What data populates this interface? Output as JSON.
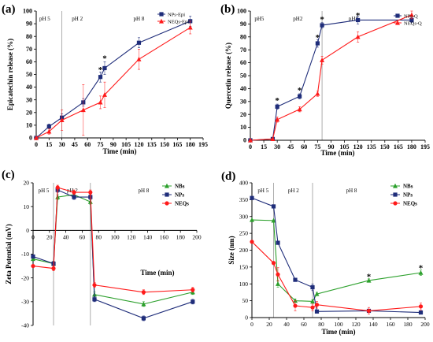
{
  "chart_data": [
    {
      "panel": "(a)",
      "type": "line",
      "xlabel": "Time (min)",
      "ylabel": "Epicatechin  release (%)",
      "xlim": [
        0,
        195
      ],
      "ylim": [
        0,
        100
      ],
      "xticks": [
        0,
        15,
        30,
        45,
        60,
        75,
        90,
        105,
        120,
        135,
        150,
        165,
        180,
        195
      ],
      "yticks": [
        0,
        10,
        20,
        30,
        40,
        50,
        60,
        70,
        80,
        90,
        100
      ],
      "phases": [
        {
          "label": "pH 5",
          "x": 10
        },
        {
          "label": "pH 2",
          "x": 48
        },
        {
          "label": "pH 8",
          "x": 120
        }
      ],
      "dividers": [
        30
      ],
      "legend_position": "top-right",
      "series": [
        {
          "name": "NPs-Epi",
          "color": "#1f2d7a",
          "marker": "square",
          "x": [
            0,
            15,
            30,
            55,
            75,
            80,
            120,
            180
          ],
          "y": [
            0,
            9,
            16,
            28,
            48,
            55,
            75,
            92
          ],
          "err": [
            0,
            2,
            3,
            3,
            4,
            5,
            4,
            4
          ]
        },
        {
          "name": "NEQs-Epi",
          "color": "#ff1a1a",
          "marker": "triangle",
          "x": [
            0,
            15,
            30,
            55,
            75,
            80,
            120,
            180
          ],
          "y": [
            0,
            5,
            14,
            22,
            28,
            34,
            62,
            87
          ],
          "err": [
            0,
            2,
            8,
            20,
            5,
            10,
            8,
            5
          ]
        }
      ],
      "annotations": [
        {
          "text": "*",
          "x": 75,
          "y": 54
        },
        {
          "text": "*",
          "x": 80,
          "y": 63
        }
      ]
    },
    {
      "panel": "(b)",
      "type": "line",
      "xlabel": "Time (min)",
      "ylabel": "Quercetin release (%)",
      "xlim": [
        0,
        195
      ],
      "ylim": [
        0,
        100
      ],
      "xticks": [
        0,
        15,
        30,
        45,
        60,
        75,
        90,
        105,
        120,
        135,
        150,
        165,
        180,
        195
      ],
      "yticks": [
        0,
        10,
        20,
        30,
        40,
        50,
        60,
        70,
        80,
        90,
        100
      ],
      "phases": [
        {
          "label": "pH5",
          "x": 10
        },
        {
          "label": "pH2",
          "x": 53
        },
        {
          "label": "pH8",
          "x": 115
        }
      ],
      "dividers": [
        80
      ],
      "legend_position": "top-right",
      "series": [
        {
          "name": "NPs-Q",
          "color": "#1f2d7a",
          "marker": "square",
          "x": [
            0,
            25,
            30,
            55,
            75,
            80,
            120,
            180
          ],
          "y": [
            0,
            1,
            26,
            34,
            75,
            89,
            93,
            93
          ],
          "err": [
            0,
            0,
            2,
            2,
            3,
            2,
            3,
            2
          ]
        },
        {
          "name": "NEQs-Q",
          "color": "#ff1a1a",
          "marker": "triangle",
          "x": [
            0,
            25,
            30,
            55,
            75,
            80,
            120,
            180
          ],
          "y": [
            0,
            1,
            16,
            24,
            36,
            62,
            80,
            97
          ],
          "err": [
            0,
            0,
            2,
            2,
            2,
            3,
            4,
            3
          ]
        }
      ],
      "annotations": [
        {
          "text": "*",
          "x": 30,
          "y": 31
        },
        {
          "text": "*",
          "x": 55,
          "y": 39
        },
        {
          "text": "*",
          "x": 75,
          "y": 80
        },
        {
          "text": "*",
          "x": 80,
          "y": 94
        },
        {
          "text": "*",
          "x": 120,
          "y": 97
        }
      ]
    },
    {
      "panel": "(c)",
      "type": "line",
      "xlabel": "Time (min)",
      "ylabel": "Zeta Potential (mV)",
      "xlim": [
        0,
        200
      ],
      "ylim": [
        -40,
        20
      ],
      "xticks": [
        0,
        20,
        40,
        60,
        80,
        100,
        120,
        140,
        160,
        180,
        200
      ],
      "yticks": [
        -40,
        -30,
        -20,
        -10,
        0,
        10,
        20
      ],
      "phases": [
        {
          "label": "pH 5",
          "x": 13
        },
        {
          "label": "pH 2",
          "x": 48
        },
        {
          "label": "pH 8",
          "x": 135
        }
      ],
      "dividers": [
        25,
        70
      ],
      "legend_position": "top-right",
      "series": [
        {
          "name": "NBs",
          "color": "#2ca02c",
          "marker": "triangle",
          "x": [
            0,
            25,
            30,
            50,
            70,
            75,
            135,
            195
          ],
          "y": [
            -12,
            -14,
            14,
            15,
            12,
            -27,
            -31,
            -26
          ],
          "err": [
            0,
            1,
            1,
            1,
            1,
            1,
            1,
            1
          ]
        },
        {
          "name": "NPs",
          "color": "#1f2d7a",
          "marker": "square",
          "x": [
            0,
            25,
            30,
            50,
            70,
            75,
            135,
            195
          ],
          "y": [
            -11,
            -14,
            17,
            14,
            14,
            -29,
            -37,
            -30
          ],
          "err": [
            0,
            1,
            1,
            1,
            1,
            1,
            1,
            1
          ]
        },
        {
          "name": "NEQs",
          "color": "#ff1a1a",
          "marker": "circle",
          "x": [
            0,
            25,
            30,
            50,
            70,
            75,
            135,
            195
          ],
          "y": [
            -15,
            -16,
            18,
            16,
            16,
            -23,
            -26,
            -25
          ],
          "err": [
            0,
            1,
            1,
            1,
            1,
            1,
            1,
            1
          ]
        }
      ]
    },
    {
      "panel": "(d)",
      "type": "line",
      "xlabel": "Time (min)",
      "ylabel": "Size (nm)",
      "xlim": [
        0,
        200
      ],
      "ylim": [
        0,
        400
      ],
      "xticks": [
        0,
        20,
        40,
        60,
        80,
        100,
        120,
        140,
        160,
        180,
        200
      ],
      "yticks": [
        0,
        50,
        100,
        150,
        200,
        250,
        300,
        350,
        400
      ],
      "phases": [
        {
          "label": "pH 5",
          "x": 13
        },
        {
          "label": "pH 2",
          "x": 48
        },
        {
          "label": "pH 8",
          "x": 115
        }
      ],
      "dividers": [
        25,
        70
      ],
      "legend_position": "top-right",
      "series": [
        {
          "name": "NBs",
          "color": "#2ca02c",
          "marker": "triangle",
          "x": [
            0,
            25,
            30,
            50,
            70,
            75,
            135,
            195
          ],
          "y": [
            290,
            288,
            100,
            50,
            48,
            70,
            110,
            133
          ],
          "err": [
            0,
            0,
            10,
            5,
            5,
            5,
            5,
            8
          ]
        },
        {
          "name": "NPs",
          "color": "#1f2d7a",
          "marker": "square",
          "x": [
            0,
            25,
            30,
            50,
            70,
            75,
            135,
            195
          ],
          "y": [
            355,
            330,
            222,
            112,
            90,
            18,
            20,
            15
          ],
          "err": [
            0,
            0,
            5,
            3,
            10,
            2,
            2,
            2
          ]
        },
        {
          "name": "NEQs",
          "color": "#ff1a1a",
          "marker": "circle",
          "x": [
            0,
            25,
            30,
            50,
            70,
            75,
            135,
            195
          ],
          "y": [
            225,
            162,
            128,
            35,
            30,
            38,
            20,
            33
          ],
          "err": [
            0,
            0,
            20,
            15,
            10,
            10,
            10,
            10
          ]
        }
      ],
      "annotations": [
        {
          "text": "*",
          "x": 135,
          "y": 123
        },
        {
          "text": "*",
          "x": 195,
          "y": 148
        }
      ]
    }
  ]
}
